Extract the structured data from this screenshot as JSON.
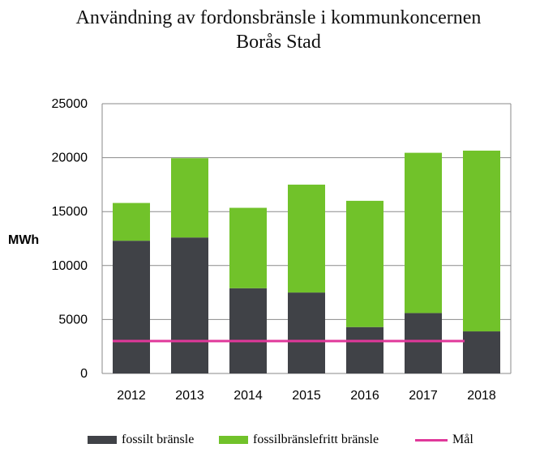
{
  "chart_data": {
    "type": "bar",
    "stacked": true,
    "title": "Användning av fordonsbränsle i kommunkoncernen",
    "subtitle": "Borås Stad",
    "ylabel": "MWh",
    "xlabel": "",
    "ylim": [
      0,
      25000
    ],
    "yticks": [
      0,
      5000,
      10000,
      15000,
      20000,
      25000
    ],
    "grid": true,
    "legend_position": "bottom",
    "categories": [
      "2012",
      "2013",
      "2014",
      "2015",
      "2016",
      "2017",
      "2018"
    ],
    "series": [
      {
        "name": "fossilt bränsle",
        "color": "#404247",
        "values": [
          12300,
          12600,
          7900,
          7500,
          4300,
          5600,
          3900
        ]
      },
      {
        "name": "fossilbränslefritt bränsle",
        "color": "#71C22A",
        "values": [
          3500,
          7350,
          7450,
          10000,
          11700,
          14850,
          16750
        ]
      }
    ],
    "target": {
      "name": "Mål",
      "color": "#E0389A",
      "value": 3000
    }
  }
}
